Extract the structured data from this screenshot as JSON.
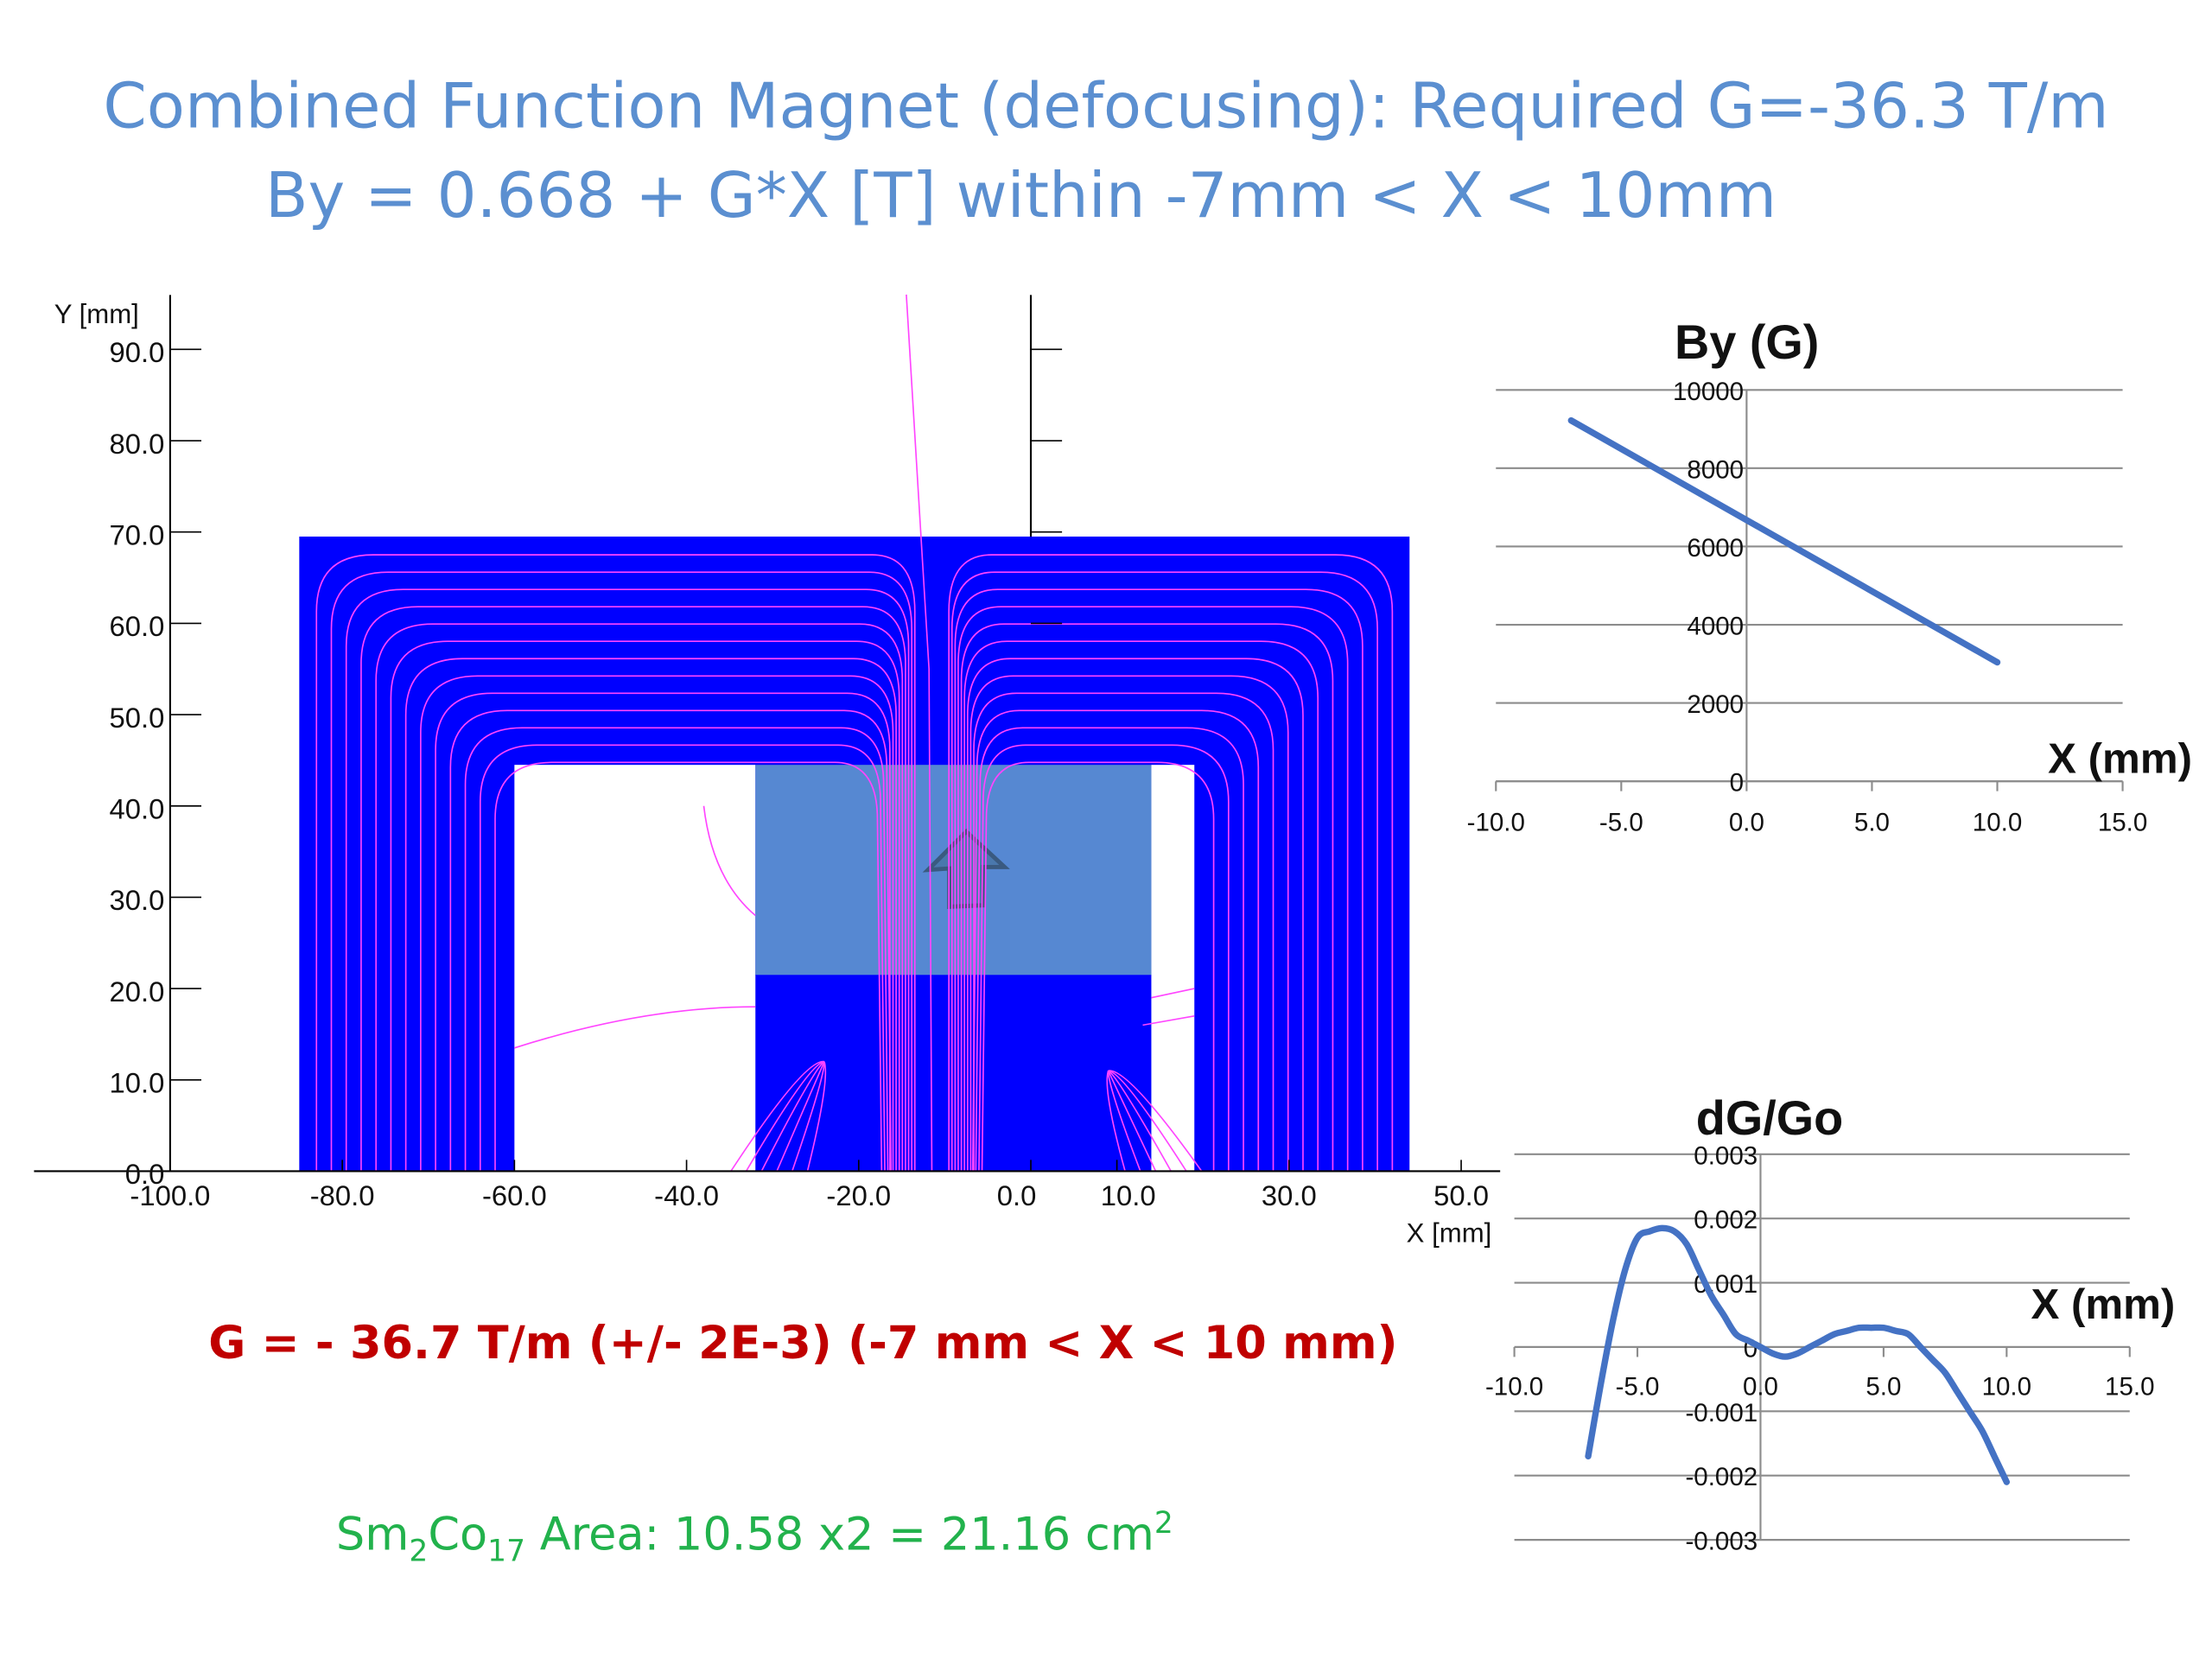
{
  "slide": {
    "title_line1": "Combined Function Magnet (defocusing): Required G=-36.3 T/m",
    "title_line2": "By = 0.668 + G*X [T] within -7mm < X < 10mm",
    "result": "G = - 36.7 T/m (+/- 2E-3) (-7 mm < X < 10 mm)",
    "area": {
      "sm": "Sm",
      "sub1": "2",
      "co": "Co",
      "sub2": "17",
      "text": " Area: 10.58 x2 = 21.16 cm",
      "sup": "2"
    }
  },
  "colors": {
    "title": "#5b8fd0",
    "iron": "#0000ff",
    "magnet": "#5b8fd0",
    "field_lines": "#ff44ff",
    "curve": "#4472c4",
    "result": "#c00000",
    "area": "#22b24c"
  },
  "chart_data": [
    {
      "type": "field_map",
      "xlabel": "X [mm]",
      "ylabel": "Y [mm]",
      "xlim": [
        -100,
        50
      ],
      "ylim": [
        0,
        90
      ],
      "x_ticks": [
        "-100.0",
        "-80.0",
        "-60.0",
        "-40.0",
        "-20.0",
        "0.0",
        "10.0",
        "30.0",
        "50.0"
      ],
      "y_ticks": [
        "0.0",
        "10.0",
        "20.0",
        "30.0",
        "40.0",
        "50.0",
        "60.0",
        "70.0",
        "80.0",
        "90.0"
      ],
      "regions": {
        "yoke": {
          "x": [
            -85,
            44
          ],
          "y": [
            0,
            69.5
          ]
        },
        "left_gap": {
          "x": [
            -60,
            -32
          ],
          "y": [
            0,
            44.5
          ]
        },
        "right_gap": {
          "x": [
            14,
            19
          ],
          "y": [
            0,
            44.5
          ]
        },
        "magnet_block": {
          "x": [
            -32,
            14
          ],
          "y": [
            21.5,
            44.5
          ]
        },
        "pole_tip": [
          [
            -32,
            21.5
          ],
          [
            14,
            21.5
          ],
          [
            12,
            13
          ],
          [
            7,
            8
          ],
          [
            -3,
            4.5
          ],
          [
            -12,
            3
          ],
          [
            -18,
            4
          ],
          [
            -24,
            9
          ],
          [
            -31,
            17
          ]
        ]
      }
    },
    {
      "type": "line",
      "title": "By (G)",
      "xlabel": "X (mm)",
      "x_ticks": [
        "-10.0",
        "-5.0",
        "0.0",
        "5.0",
        "10.0",
        "15.0"
      ],
      "y_ticks": [
        "0",
        "2000",
        "4000",
        "6000",
        "8000",
        "10000"
      ],
      "xlim": [
        -10,
        15
      ],
      "ylim": [
        0,
        10000
      ],
      "grid": true,
      "series": [
        {
          "x": [
            -7,
            10
          ],
          "y": [
            9220,
            3040
          ]
        }
      ]
    },
    {
      "type": "line",
      "title": "dG/Go",
      "xlabel": "X (mm)",
      "x_ticks": [
        "-10.0",
        "-5.0",
        "0.0",
        "5.0",
        "10.0",
        "15.0"
      ],
      "y_ticks": [
        "0.003",
        "0.002",
        "0.001",
        "0",
        "-0.001",
        "-0.002",
        "-0.003"
      ],
      "xlim": [
        -10,
        15
      ],
      "ylim": [
        -0.003,
        0.003
      ],
      "grid": true,
      "series": [
        {
          "x": [
            -7,
            -6.5,
            -6,
            -5.5,
            -5,
            -4.5,
            -4,
            -3.5,
            -3,
            -2.5,
            -2,
            -1.5,
            -1,
            -0.5,
            0,
            0.5,
            1,
            1.5,
            2,
            2.5,
            3,
            3.5,
            4,
            4.5,
            5,
            5.5,
            6,
            6.5,
            7,
            7.5,
            8,
            8.5,
            9,
            9.5,
            10
          ],
          "y": [
            -0.0017,
            -0.0006,
            0.0004,
            0.0012,
            0.0017,
            0.0018,
            0.00185,
            0.0018,
            0.0016,
            0.0012,
            0.0008,
            0.0005,
            0.0002,
            0.0001,
            0.0,
            -0.0001,
            -0.00015,
            -0.0001,
            0.0,
            0.0001,
            0.0002,
            0.00025,
            0.0003,
            0.0003,
            0.0003,
            0.00025,
            0.0002,
            0.0,
            -0.0002,
            -0.0004,
            -0.0007,
            -0.001,
            -0.0013,
            -0.0017,
            -0.0021
          ]
        }
      ]
    }
  ]
}
